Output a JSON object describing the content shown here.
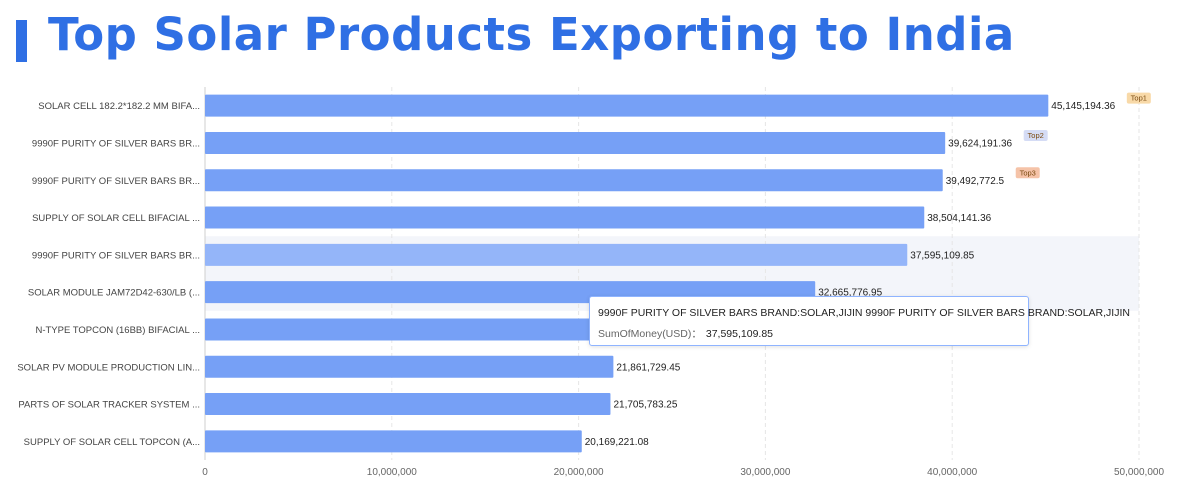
{
  "header": {
    "title": "Top Solar Products Exporting to India"
  },
  "colors": {
    "bar": "#76a0f6",
    "bar_hover": "#94b5f9",
    "accent": "#2f6fe4",
    "grid": "#e6e6e6",
    "badge_top1": "#f8d9a8",
    "badge_top2": "#d5dcf5",
    "badge_top3": "#f5c3a8"
  },
  "chart_data": {
    "type": "bar",
    "orientation": "horizontal",
    "categories": [
      "SOLAR CELL 182.2*182.2 MM BIFA...",
      "9990F PURITY OF SILVER BARS BR...",
      "9990F PURITY OF SILVER BARS BR...",
      "SUPPLY OF SOLAR CELL BIFACIAL ...",
      "9990F PURITY OF SILVER BARS BR...",
      "SOLAR MODULE JAM72D42-630/LB (...",
      "N-TYPE TOPCON (16BB) BIFACIAL ...",
      "SOLAR PV MODULE PRODUCTION LIN...",
      "PARTS OF SOLAR TRACKER SYSTEM ...",
      "SUPPLY OF SOLAR CELL TOPCON (A..."
    ],
    "values": [
      45145194.36,
      39624191.36,
      39492772.5,
      38504141.36,
      37595109.85,
      32665776.95,
      30100000,
      21861729.45,
      21705783.25,
      20169221.08
    ],
    "value_labels": [
      "45,145,194.36",
      "39,624,191.36",
      "39,492,772.5",
      "38,504,141.36",
      "37,595,109.85",
      "32,665,776.95",
      "",
      "21,861,729.45",
      "21,705,783.25",
      "20,169,221.08"
    ],
    "badges": [
      "Top1",
      "Top2",
      "Top3"
    ],
    "xlim": [
      0,
      50000000
    ],
    "xticks": [
      0,
      10000000,
      20000000,
      30000000,
      40000000,
      50000000
    ],
    "xtick_labels": [
      "0",
      "10,000,000",
      "20,000,000",
      "30,000,000",
      "40,000,000",
      "50,000,000"
    ],
    "grid": true,
    "highlighted_index": 4
  },
  "tooltip": {
    "title": "9990F PURITY OF SILVER BARS BRAND:SOLAR,JIJIN 9990F PURITY OF SILVER BARS BRAND:SOLAR,JIJIN",
    "label": "SumOfMoney(USD)：",
    "value": "37,595,109.85"
  }
}
